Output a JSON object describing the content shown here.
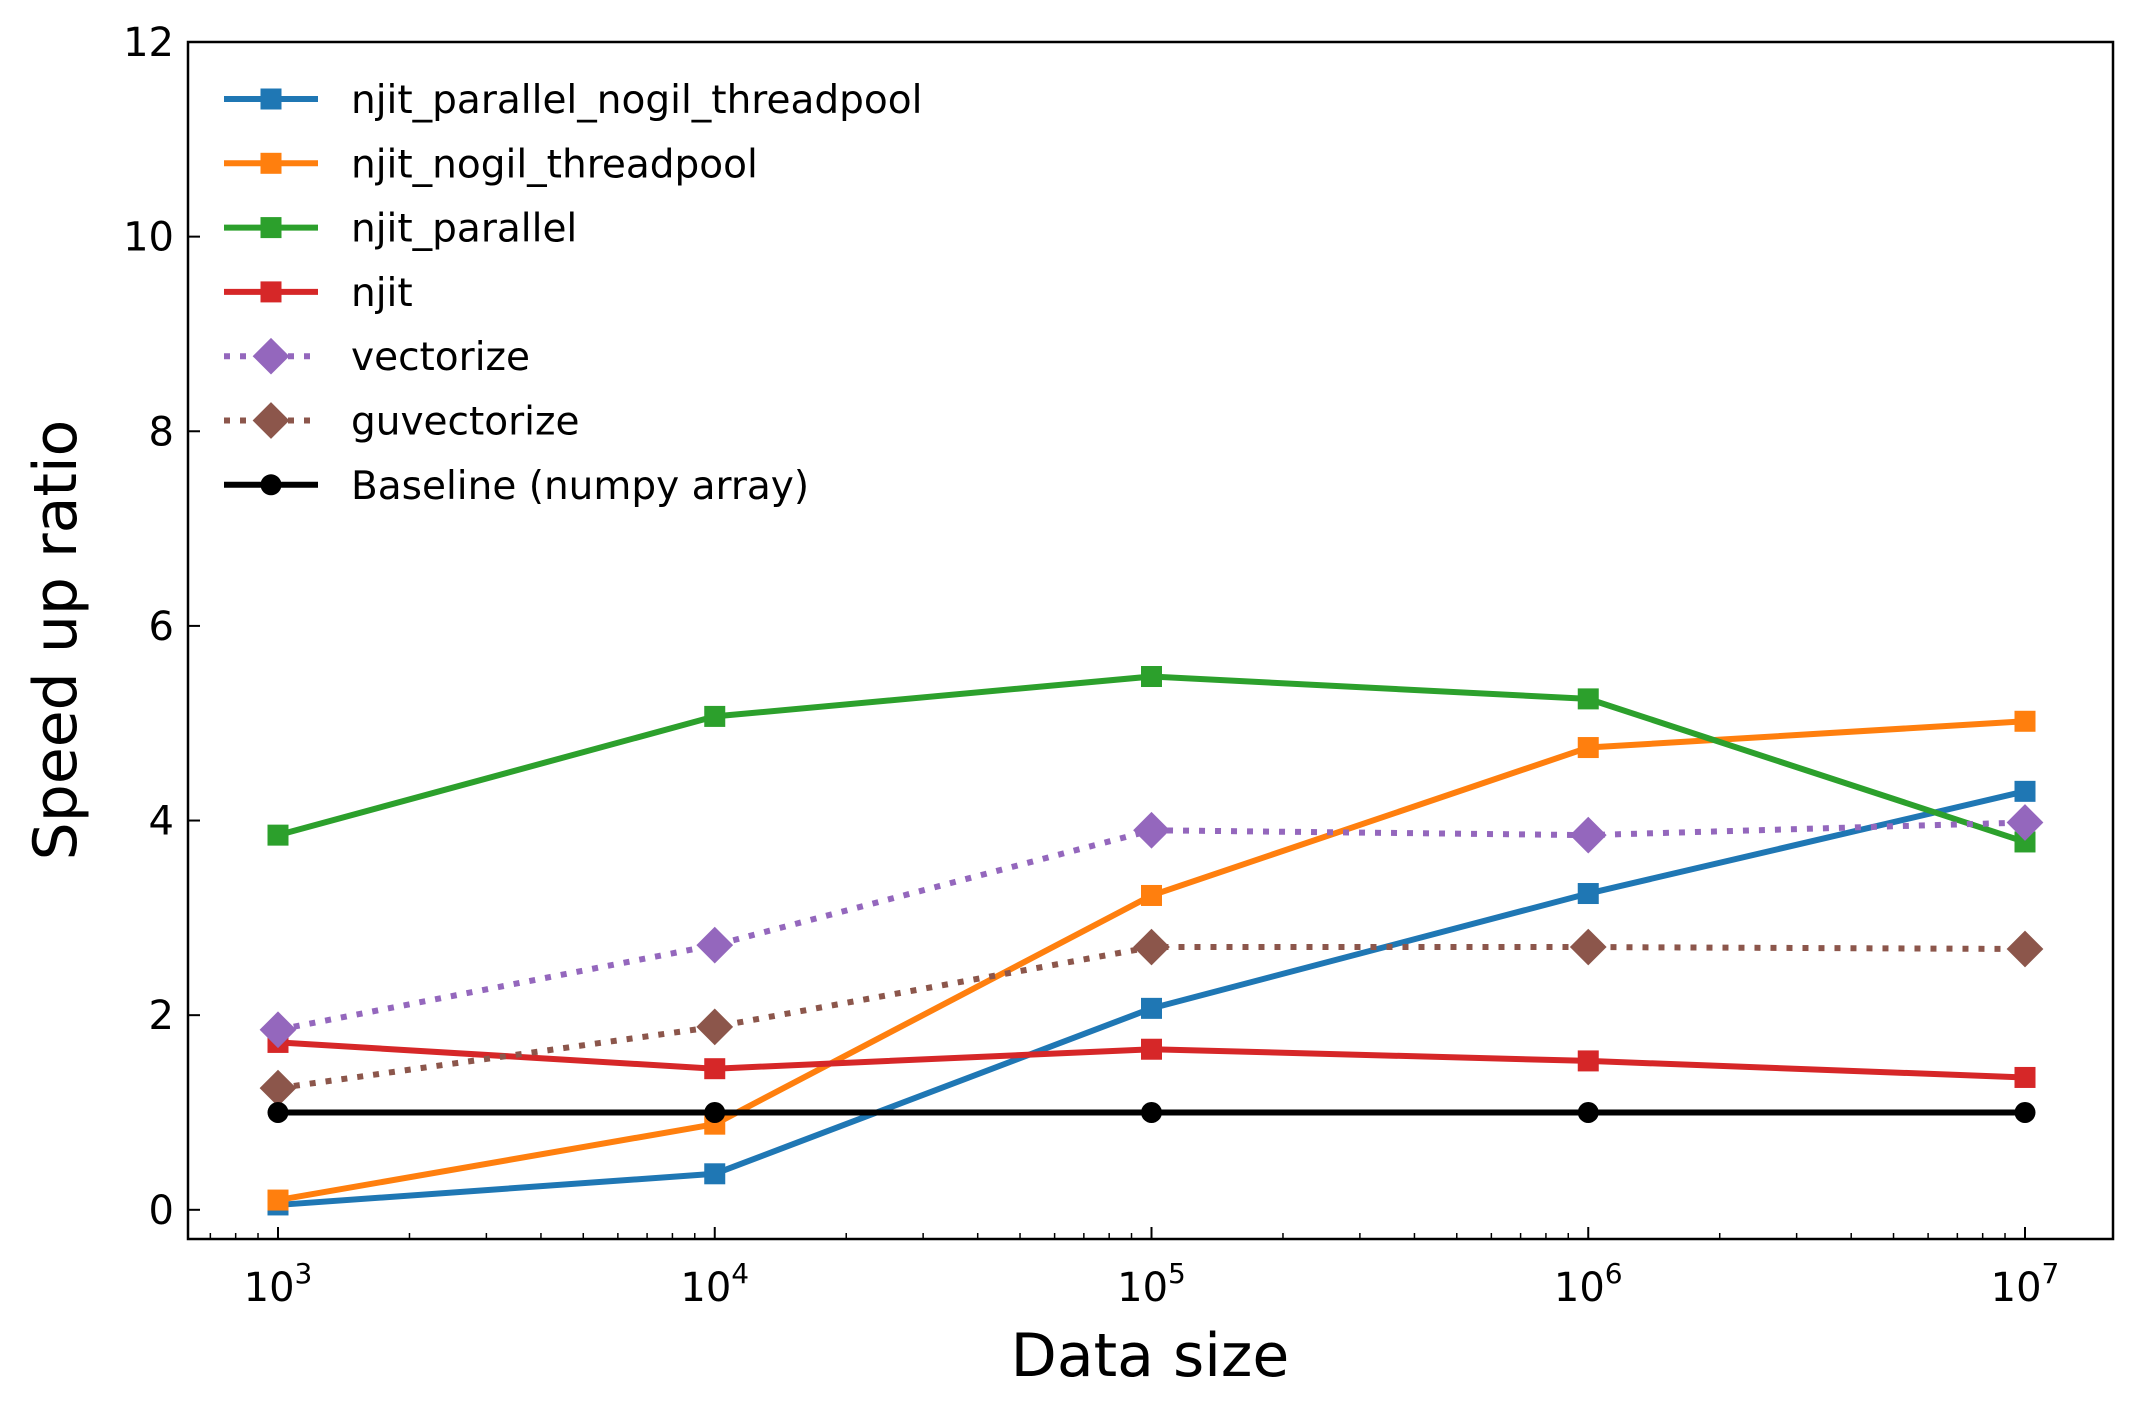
{
  "chart_data": {
    "type": "line",
    "xlabel": "Data size",
    "ylabel": "Speed up ratio",
    "x": [
      1000,
      10000,
      100000,
      1000000,
      10000000
    ],
    "x_scale": "log",
    "x_ticks": [
      {
        "base": "10",
        "exp": "3"
      },
      {
        "base": "10",
        "exp": "4"
      },
      {
        "base": "10",
        "exp": "5"
      },
      {
        "base": "10",
        "exp": "6"
      },
      {
        "base": "10",
        "exp": "7"
      }
    ],
    "ylim": [
      -0.3,
      12
    ],
    "y_ticks": [
      "0",
      "2",
      "4",
      "6",
      "8",
      "10",
      "12"
    ],
    "grid": false,
    "legend_position": "top-left",
    "series": [
      {
        "name": "njit_parallel_nogil_threadpool",
        "color": "#1f77b4",
        "marker": "square",
        "style": "solid",
        "values": [
          0.05,
          0.37,
          2.07,
          3.25,
          4.3
        ]
      },
      {
        "name": "njit_nogil_threadpool",
        "color": "#ff7f0e",
        "marker": "square",
        "style": "solid",
        "values": [
          0.1,
          0.88,
          3.23,
          4.75,
          5.02
        ]
      },
      {
        "name": "njit_parallel",
        "color": "#2ca02c",
        "marker": "square",
        "style": "solid",
        "values": [
          3.85,
          5.07,
          5.48,
          5.25,
          3.78
        ]
      },
      {
        "name": "njit",
        "color": "#d62728",
        "marker": "square",
        "style": "solid",
        "values": [
          1.72,
          1.45,
          1.65,
          1.53,
          1.36
        ]
      },
      {
        "name": "vectorize",
        "color": "#9467bd",
        "marker": "diamond",
        "style": "dotted",
        "values": [
          1.85,
          2.72,
          3.9,
          3.85,
          3.98
        ]
      },
      {
        "name": "guvectorize",
        "color": "#8c564b",
        "marker": "diamond",
        "style": "dotted",
        "values": [
          1.25,
          1.88,
          2.7,
          2.7,
          2.68
        ]
      },
      {
        "name": "Baseline (numpy array)",
        "color": "#000000",
        "marker": "circle",
        "style": "solid",
        "values": [
          1,
          1,
          1,
          1,
          1
        ]
      }
    ]
  }
}
